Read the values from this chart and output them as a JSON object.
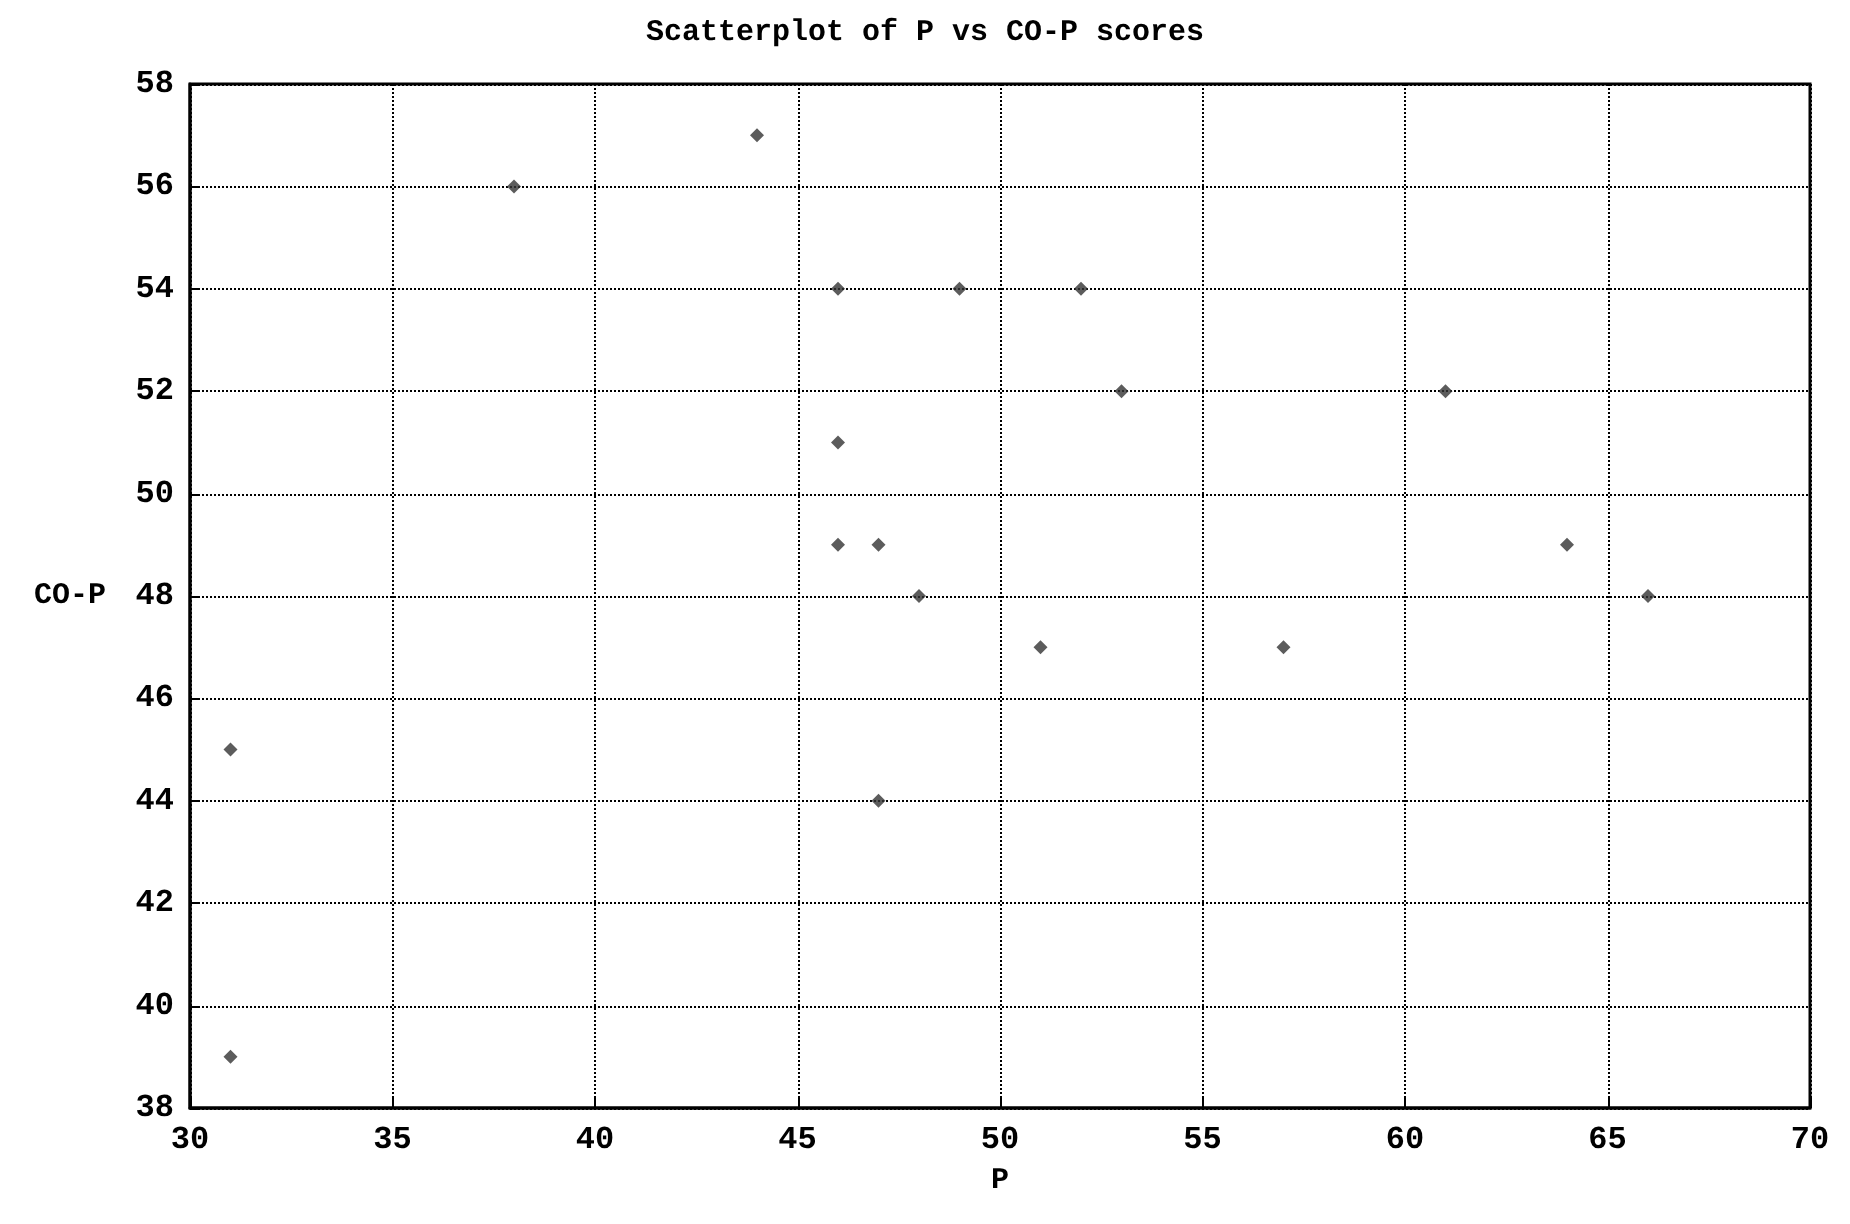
{
  "chart_data": {
    "type": "scatter",
    "title": "Scatterplot of P vs CO-P scores",
    "xlabel": "P",
    "ylabel": "CO-P",
    "x": [
      31,
      31,
      38,
      44,
      46,
      49,
      52,
      53,
      46,
      46,
      47,
      48,
      51,
      57,
      47,
      61,
      64,
      66
    ],
    "values": [
      45,
      39,
      56,
      57,
      54,
      54,
      54,
      52,
      51,
      49,
      49,
      48,
      47,
      47,
      44,
      52,
      49,
      48
    ],
    "color": "#333333",
    "marker": "diamond",
    "grid": true,
    "xlim": [
      30,
      70
    ],
    "xticks": [
      30,
      35,
      40,
      45,
      50,
      55,
      60,
      65,
      70
    ],
    "ylim": [
      38,
      58
    ],
    "yticks": [
      38,
      40,
      42,
      44,
      46,
      48,
      50,
      52,
      54,
      56,
      58
    ]
  }
}
